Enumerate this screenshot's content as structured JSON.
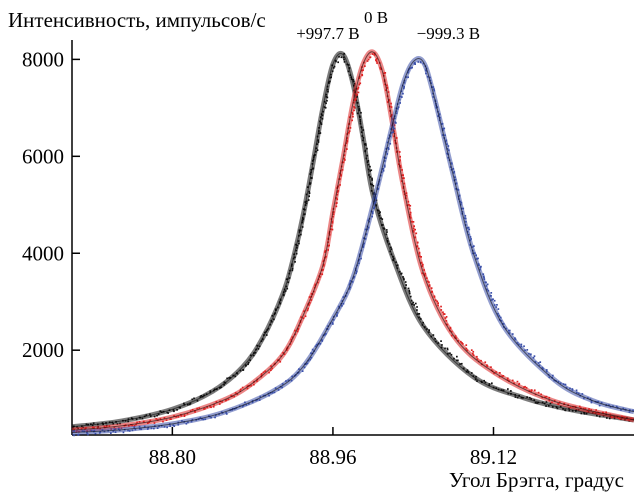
{
  "chart_data": {
    "type": "line",
    "title": "",
    "ylabel": "Интенсивность, импульсов/с",
    "xlabel": "Угол Брэгга, градус",
    "xlim": [
      88.7,
      89.26
    ],
    "ylim": [
      250,
      8400
    ],
    "xticks": [
      88.8,
      88.96,
      89.12
    ],
    "xtick_labels": [
      "88.80",
      "88.96",
      "89.12"
    ],
    "yticks": [
      2000,
      4000,
      6000,
      8000
    ],
    "ytick_labels": [
      "2000",
      "4000",
      "6000",
      "8000"
    ],
    "grid": false,
    "series": [
      {
        "name": "+997.7 В",
        "color": "#111111",
        "x": [
          88.7,
          88.75,
          88.8,
          88.84,
          88.87,
          88.89,
          88.91,
          88.92,
          88.93,
          88.94,
          88.95,
          88.96,
          88.97,
          88.98,
          88.99,
          89.0,
          89.02,
          89.05,
          89.1,
          89.15,
          89.2,
          89.26
        ],
        "y": [
          420,
          540,
          780,
          1150,
          1650,
          2250,
          3150,
          3850,
          4750,
          5850,
          7000,
          7900,
          8100,
          7500,
          6400,
          5200,
          3900,
          2500,
          1450,
          1020,
          760,
          560
        ]
      },
      {
        "name": "0 В",
        "color": "#dd2222",
        "x": [
          88.7,
          88.75,
          88.8,
          88.85,
          88.88,
          88.91,
          88.93,
          88.95,
          88.96,
          88.97,
          88.98,
          88.99,
          89.0,
          89.01,
          89.02,
          89.03,
          89.05,
          89.08,
          89.12,
          89.18,
          89.26
        ],
        "y": [
          350,
          440,
          620,
          960,
          1320,
          1900,
          2700,
          3750,
          4850,
          5950,
          7100,
          7900,
          8150,
          7700,
          6600,
          5400,
          3600,
          2300,
          1550,
          950,
          560
        ]
      },
      {
        "name": "−999.3 В",
        "color": "#3a4fa8",
        "x": [
          88.7,
          88.75,
          88.8,
          88.85,
          88.9,
          88.93,
          88.96,
          88.98,
          89.0,
          89.02,
          89.03,
          89.04,
          89.05,
          89.06,
          89.08,
          89.1,
          89.13,
          89.18,
          89.22,
          89.26
        ],
        "y": [
          300,
          360,
          480,
          710,
          1150,
          1650,
          2650,
          3500,
          5000,
          6700,
          7500,
          7950,
          7950,
          7300,
          5600,
          4000,
          2500,
          1400,
          950,
          730
        ]
      }
    ],
    "annotations": [
      {
        "text": "+997.7 В",
        "x": 88.955,
        "y": 8420
      },
      {
        "text": "0 В",
        "x": 89.003,
        "y": 8750
      },
      {
        "text": "−999.3 В",
        "x": 89.075,
        "y": 8420
      }
    ]
  }
}
